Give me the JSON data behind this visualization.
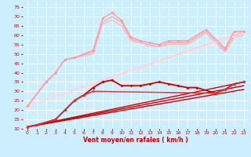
{
  "bg_color": "#cceeff",
  "grid_color": "#ffffff",
  "xlabel": "Vent moyen/en rafales ( km/h )",
  "xlabel_color": "#cc0000",
  "tick_color": "#cc0000",
  "xlim": [
    -0.5,
    23.5
  ],
  "ylim": [
    10,
    78
  ],
  "yticks": [
    10,
    15,
    20,
    25,
    30,
    35,
    40,
    45,
    50,
    55,
    60,
    65,
    70,
    75
  ],
  "xticks": [
    0,
    1,
    2,
    3,
    4,
    5,
    6,
    7,
    8,
    9,
    10,
    11,
    12,
    13,
    14,
    15,
    16,
    17,
    18,
    19,
    20,
    21,
    22,
    23
  ],
  "lines": [
    {
      "x": [
        0,
        2,
        3,
        4,
        5,
        7,
        8,
        9,
        10,
        11,
        12,
        13,
        14,
        15,
        16,
        17,
        19,
        21,
        22,
        23
      ],
      "y": [
        22,
        35,
        40,
        47,
        48,
        52,
        69,
        72,
        68,
        59,
        57,
        56,
        55,
        57,
        57,
        57,
        63,
        53,
        62,
        62
      ],
      "color": "#ff9999",
      "lw": 1.0,
      "marker": "D",
      "ms": 2.0,
      "zorder": 3
    },
    {
      "x": [
        0,
        2,
        3,
        4,
        5,
        7,
        8,
        9,
        10,
        11,
        12,
        13,
        14,
        15,
        16,
        17,
        19,
        21,
        22,
        23
      ],
      "y": [
        22,
        35,
        40,
        47,
        48,
        51,
        67,
        70,
        67,
        58,
        56,
        55,
        54,
        56,
        56,
        56,
        62,
        52,
        60,
        61
      ],
      "color": "#ffaaaa",
      "lw": 1.0,
      "marker": null,
      "ms": 0,
      "zorder": 2
    },
    {
      "x": [
        0,
        2,
        3,
        4,
        5,
        7,
        8,
        9,
        10,
        11,
        12,
        13,
        14,
        15,
        16,
        17,
        19,
        21,
        22,
        23
      ],
      "y": [
        22,
        35,
        40,
        47,
        48,
        50,
        66,
        68,
        65,
        57,
        56,
        54,
        54,
        55,
        55,
        55,
        61,
        51,
        59,
        60
      ],
      "color": "#ffbbbb",
      "lw": 1.0,
      "marker": null,
      "ms": 0,
      "zorder": 2
    },
    {
      "x": [
        0,
        23
      ],
      "y": [
        22,
        62
      ],
      "color": "#ffcccc",
      "lw": 1.0,
      "marker": null,
      "ms": 0,
      "zorder": 2
    },
    {
      "x": [
        0,
        23
      ],
      "y": [
        22,
        61
      ],
      "color": "#ffdddd",
      "lw": 1.0,
      "marker": null,
      "ms": 0,
      "zorder": 2
    },
    {
      "x": [
        0,
        1,
        3,
        4,
        5,
        6,
        7,
        8,
        9,
        10,
        11,
        12,
        13,
        14,
        15,
        16,
        17,
        18,
        20,
        21,
        22,
        23
      ],
      "y": [
        11,
        12,
        15,
        20,
        25,
        28,
        32,
        35,
        36,
        33,
        33,
        33,
        34,
        35,
        34,
        33,
        32,
        32,
        29,
        31,
        34,
        35
      ],
      "color": "#cc0000",
      "lw": 1.3,
      "marker": "D",
      "ms": 2.0,
      "zorder": 4
    },
    {
      "x": [
        0,
        23
      ],
      "y": [
        11,
        35
      ],
      "color": "#cc0000",
      "lw": 1.0,
      "marker": null,
      "ms": 0,
      "zorder": 3
    },
    {
      "x": [
        0,
        23
      ],
      "y": [
        11,
        33
      ],
      "color": "#cc0000",
      "lw": 1.0,
      "marker": null,
      "ms": 0,
      "zorder": 3
    },
    {
      "x": [
        0,
        23
      ],
      "y": [
        11,
        31
      ],
      "color": "#cc0000",
      "lw": 1.0,
      "marker": null,
      "ms": 0,
      "zorder": 3
    },
    {
      "x": [
        0,
        1,
        3,
        4,
        5,
        6,
        7,
        20,
        21,
        22,
        23
      ],
      "y": [
        11,
        12,
        15,
        20,
        25,
        28,
        30,
        29,
        31,
        34,
        35
      ],
      "color": "#dd3333",
      "lw": 1.1,
      "marker": "D",
      "ms": 2.0,
      "zorder": 4
    }
  ]
}
